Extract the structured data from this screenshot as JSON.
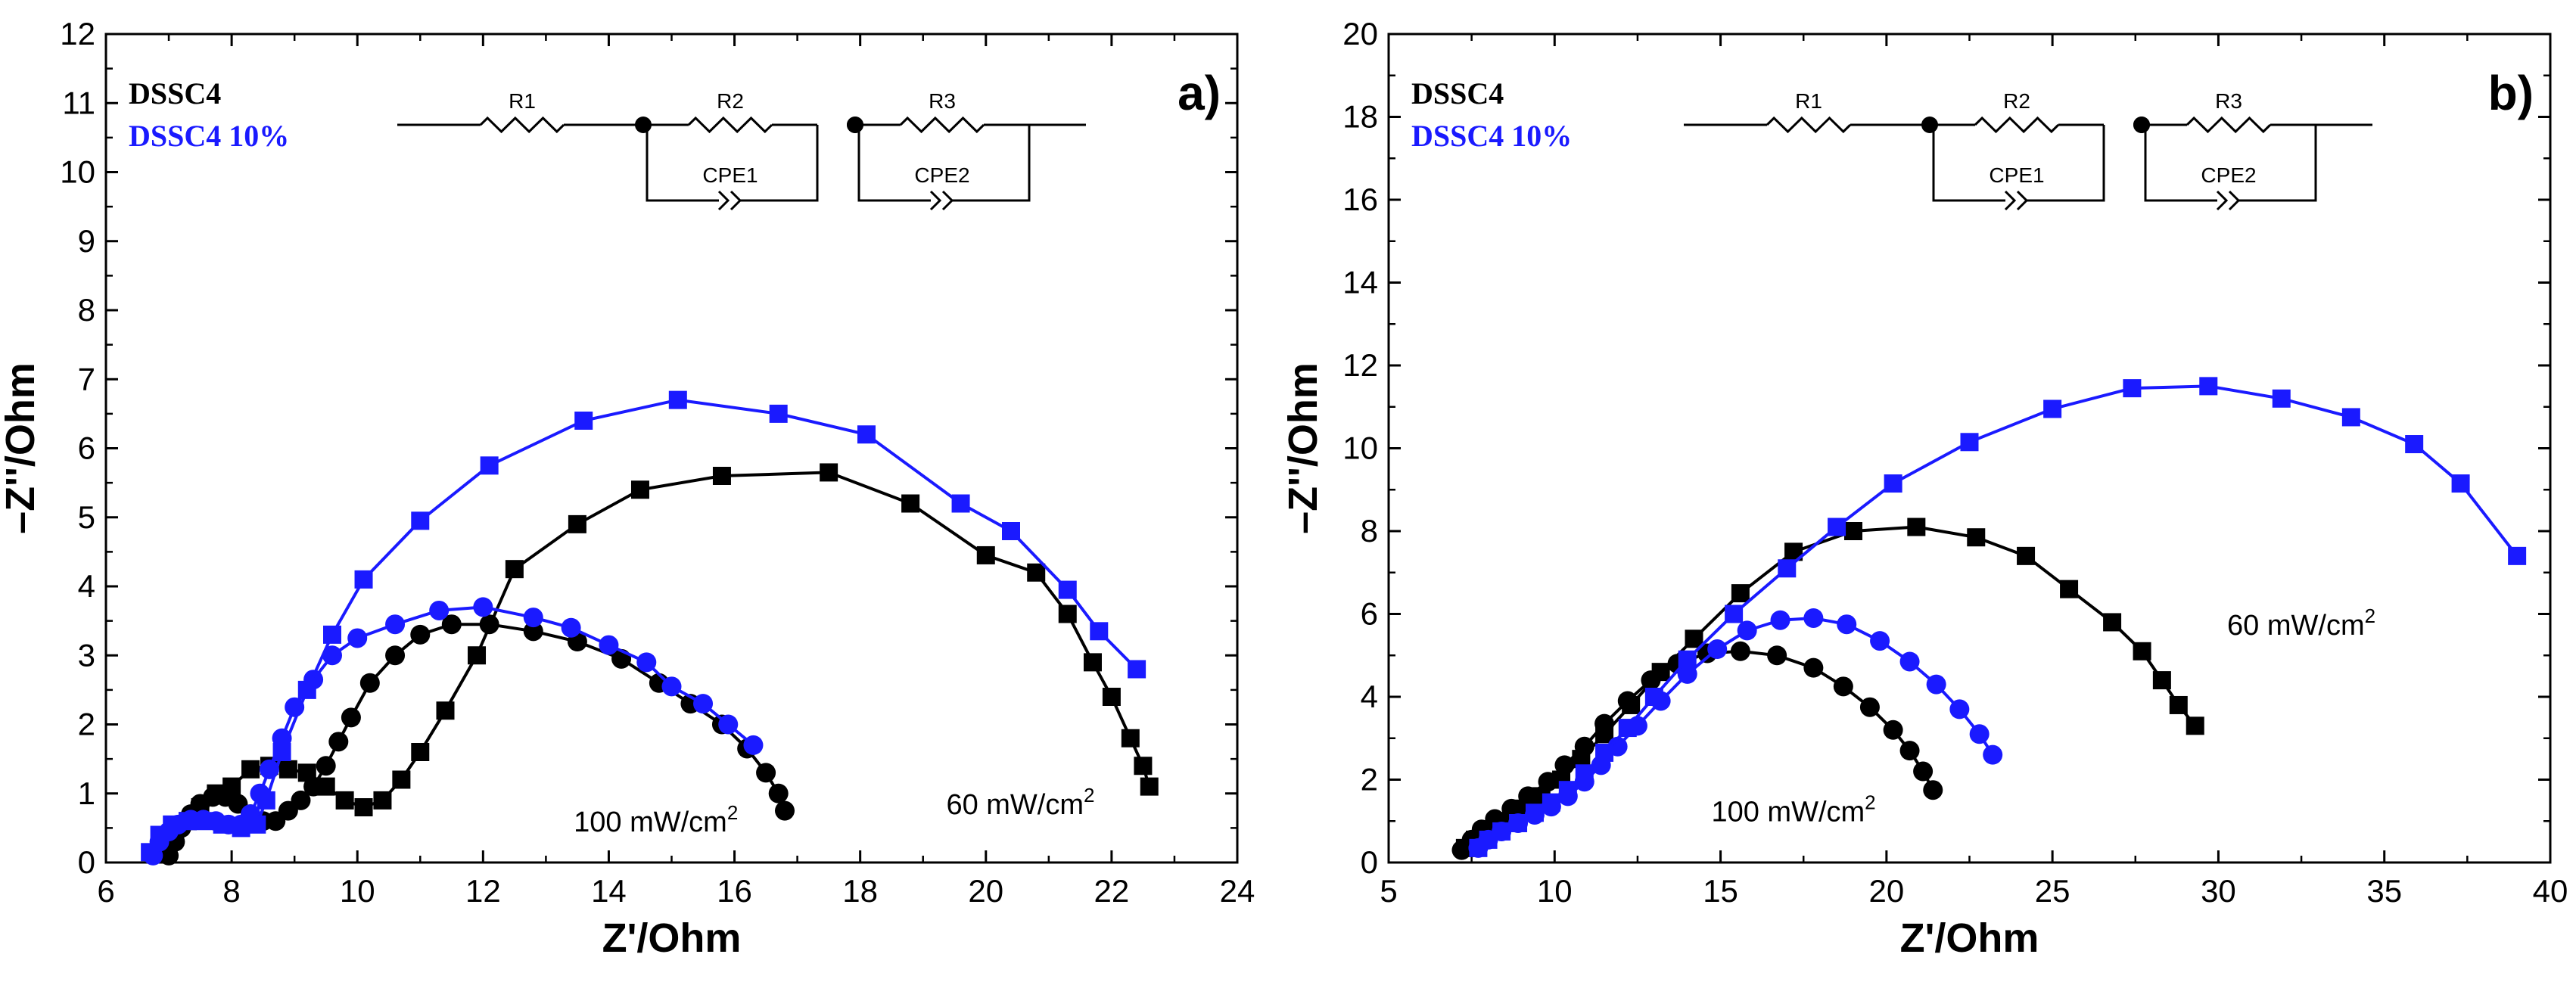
{
  "chart_data": [
    {
      "type": "scatter",
      "panel_label": "a)",
      "xlabel": "Z'/Ohm",
      "ylabel": "–Z''/Ohm",
      "xlim": [
        6,
        24
      ],
      "ylim": [
        0,
        12
      ],
      "xticks": [
        "6",
        "8",
        "10",
        "12",
        "14",
        "16",
        "18",
        "20",
        "22",
        "24"
      ],
      "yticks": [
        "0",
        "1",
        "2",
        "3",
        "4",
        "5",
        "6",
        "7",
        "8",
        "9",
        "10",
        "11",
        "12"
      ],
      "legend": [
        {
          "label": "DSSC4",
          "color": "#000000"
        },
        {
          "label": "DSSC4 10%",
          "color": "#1a1aff"
        }
      ],
      "legend_placement": "top-left",
      "circuit": {
        "resistors": [
          "R1",
          "R2",
          "R3"
        ],
        "cpes": [
          "CPE1",
          "CPE2"
        ]
      },
      "annotations": [
        {
          "text": "100 mW/cm",
          "sup": "2",
          "x": 14.75,
          "y": 0.45
        },
        {
          "text": "60 mW/cm",
          "sup": "2",
          "x": 20.55,
          "y": 0.7
        }
      ],
      "series": [
        {
          "color": "#000000",
          "marker": "circle",
          "x": [
            7.0,
            7.1,
            7.2,
            7.35,
            7.5,
            7.7,
            7.9,
            8.1,
            8.3,
            8.5,
            8.7,
            8.9,
            9.1,
            9.3,
            9.5,
            9.7,
            9.9,
            10.2,
            10.6,
            11.0,
            11.5,
            12.1,
            12.8,
            13.5,
            14.2,
            14.8,
            15.3,
            15.8,
            16.2,
            16.5,
            16.7,
            16.8
          ],
          "y": [
            0.1,
            0.3,
            0.5,
            0.7,
            0.85,
            0.95,
            0.95,
            0.85,
            0.7,
            0.6,
            0.6,
            0.75,
            0.9,
            1.1,
            1.4,
            1.75,
            2.1,
            2.6,
            3.0,
            3.3,
            3.45,
            3.45,
            3.35,
            3.2,
            2.95,
            2.6,
            2.3,
            2.0,
            1.65,
            1.3,
            1.0,
            0.75
          ]
        },
        {
          "color": "#000000",
          "marker": "square",
          "x": [
            6.95,
            7.1,
            7.3,
            7.5,
            7.75,
            8.0,
            8.3,
            8.6,
            8.9,
            9.2,
            9.5,
            9.8,
            10.1,
            10.4,
            10.7,
            11.0,
            11.4,
            11.9,
            12.5,
            13.5,
            14.5,
            15.8,
            17.5,
            18.8,
            20.0,
            20.8,
            21.3,
            21.7,
            22.0,
            22.3,
            22.5,
            22.6
          ],
          "y": [
            0.15,
            0.4,
            0.6,
            0.8,
            1.0,
            1.1,
            1.35,
            1.4,
            1.35,
            1.3,
            1.1,
            0.9,
            0.8,
            0.9,
            1.2,
            1.6,
            2.2,
            3.0,
            4.25,
            4.9,
            5.4,
            5.6,
            5.65,
            5.2,
            4.45,
            4.2,
            3.6,
            2.9,
            2.4,
            1.8,
            1.4,
            1.1
          ]
        },
        {
          "color": "#1a1aff",
          "marker": "circle",
          "x": [
            6.75,
            6.85,
            7.0,
            7.15,
            7.35,
            7.55,
            7.75,
            7.95,
            8.15,
            8.3,
            8.45,
            8.6,
            8.8,
            9.0,
            9.3,
            9.6,
            10.0,
            10.6,
            11.3,
            12.0,
            12.8,
            13.4,
            14.0,
            14.6,
            15.0,
            15.5,
            15.9,
            16.3
          ],
          "y": [
            0.1,
            0.3,
            0.45,
            0.55,
            0.62,
            0.62,
            0.6,
            0.55,
            0.55,
            0.7,
            1.0,
            1.35,
            1.8,
            2.25,
            2.65,
            3.0,
            3.25,
            3.45,
            3.65,
            3.7,
            3.55,
            3.4,
            3.15,
            2.9,
            2.55,
            2.3,
            2.0,
            1.7
          ]
        },
        {
          "color": "#1a1aff",
          "marker": "square",
          "x": [
            6.7,
            6.85,
            7.05,
            7.3,
            7.55,
            7.85,
            8.15,
            8.4,
            8.55,
            8.8,
            9.2,
            9.6,
            10.1,
            11.0,
            12.1,
            13.6,
            15.1,
            16.7,
            18.1,
            19.6,
            20.4,
            21.3,
            21.8,
            22.4
          ],
          "y": [
            0.15,
            0.4,
            0.55,
            0.6,
            0.6,
            0.55,
            0.5,
            0.55,
            0.9,
            1.6,
            2.5,
            3.3,
            4.1,
            4.95,
            5.75,
            6.4,
            6.7,
            6.5,
            6.2,
            5.2,
            4.8,
            3.95,
            3.35,
            2.8
          ]
        }
      ]
    },
    {
      "type": "scatter",
      "panel_label": "b)",
      "xlabel": "Z'/Ohm",
      "ylabel": "–Z''/Ohm",
      "xlim": [
        5,
        40
      ],
      "ylim": [
        0,
        20
      ],
      "xticks": [
        "5",
        "10",
        "15",
        "20",
        "25",
        "30",
        "35",
        "40"
      ],
      "yticks": [
        "0",
        "2",
        "4",
        "6",
        "8",
        "10",
        "12",
        "14",
        "16",
        "18",
        "20"
      ],
      "legend": [
        {
          "label": "DSSC4",
          "color": "#000000"
        },
        {
          "label": "DSSC4 10%",
          "color": "#1a1aff"
        }
      ],
      "legend_placement": "top-left",
      "circuit": {
        "resistors": [
          "R1",
          "R2",
          "R3"
        ],
        "cpes": [
          "CPE1",
          "CPE2"
        ]
      },
      "annotations": [
        {
          "text": "60 mW/cm",
          "sup": "2",
          "x": 32.5,
          "y": 5.5
        },
        {
          "text": "100 mW/cm",
          "sup": "2",
          "x": 17.2,
          "y": 1.0
        }
      ],
      "series": [
        {
          "color": "#000000",
          "marker": "circle",
          "x": [
            7.2,
            7.5,
            7.8,
            8.2,
            8.7,
            9.2,
            9.8,
            10.3,
            10.9,
            11.5,
            12.2,
            12.9,
            13.7,
            14.6,
            15.6,
            16.7,
            17.8,
            18.7,
            19.5,
            20.2,
            20.7,
            21.1,
            21.4
          ],
          "y": [
            0.3,
            0.55,
            0.8,
            1.05,
            1.3,
            1.6,
            1.95,
            2.35,
            2.8,
            3.35,
            3.9,
            4.4,
            4.8,
            5.05,
            5.1,
            5.0,
            4.7,
            4.25,
            3.75,
            3.2,
            2.7,
            2.2,
            1.75
          ]
        },
        {
          "color": "#000000",
          "marker": "square",
          "x": [
            7.3,
            7.6,
            8.0,
            8.5,
            9.0,
            9.6,
            10.2,
            10.8,
            11.5,
            12.3,
            13.2,
            14.2,
            15.6,
            17.2,
            19.0,
            20.9,
            22.7,
            24.2,
            25.5,
            26.8,
            27.7,
            28.3,
            28.8,
            29.3
          ],
          "y": [
            0.35,
            0.55,
            0.8,
            1.0,
            1.3,
            1.6,
            2.0,
            2.5,
            3.1,
            3.8,
            4.6,
            5.4,
            6.5,
            7.5,
            8.0,
            8.1,
            7.85,
            7.4,
            6.6,
            5.8,
            5.1,
            4.4,
            3.8,
            3.3
          ]
        },
        {
          "color": "#1a1aff",
          "marker": "circle",
          "x": [
            7.7,
            8.0,
            8.4,
            8.9,
            9.4,
            9.9,
            10.4,
            10.9,
            11.4,
            11.9,
            12.5,
            13.2,
            14.0,
            14.9,
            15.8,
            16.8,
            17.8,
            18.8,
            19.8,
            20.7,
            21.5,
            22.2,
            22.8,
            23.2
          ],
          "y": [
            0.35,
            0.55,
            0.75,
            0.95,
            1.15,
            1.35,
            1.6,
            1.95,
            2.35,
            2.8,
            3.3,
            3.9,
            4.55,
            5.15,
            5.6,
            5.85,
            5.9,
            5.75,
            5.35,
            4.85,
            4.3,
            3.7,
            3.1,
            2.6
          ]
        },
        {
          "color": "#1a1aff",
          "marker": "square",
          "x": [
            7.7,
            8.0,
            8.4,
            8.9,
            9.4,
            9.9,
            10.4,
            10.9,
            11.5,
            12.2,
            13.0,
            14.0,
            15.4,
            17.0,
            18.5,
            20.2,
            22.5,
            25.0,
            27.4,
            29.7,
            31.9,
            34.0,
            35.9,
            37.3,
            39.0
          ],
          "y": [
            0.35,
            0.55,
            0.75,
            0.95,
            1.2,
            1.45,
            1.75,
            2.15,
            2.65,
            3.25,
            4.0,
            4.9,
            6.0,
            7.1,
            8.1,
            9.15,
            10.15,
            10.95,
            11.45,
            11.5,
            11.2,
            10.75,
            10.1,
            9.15,
            7.4
          ]
        }
      ]
    }
  ]
}
